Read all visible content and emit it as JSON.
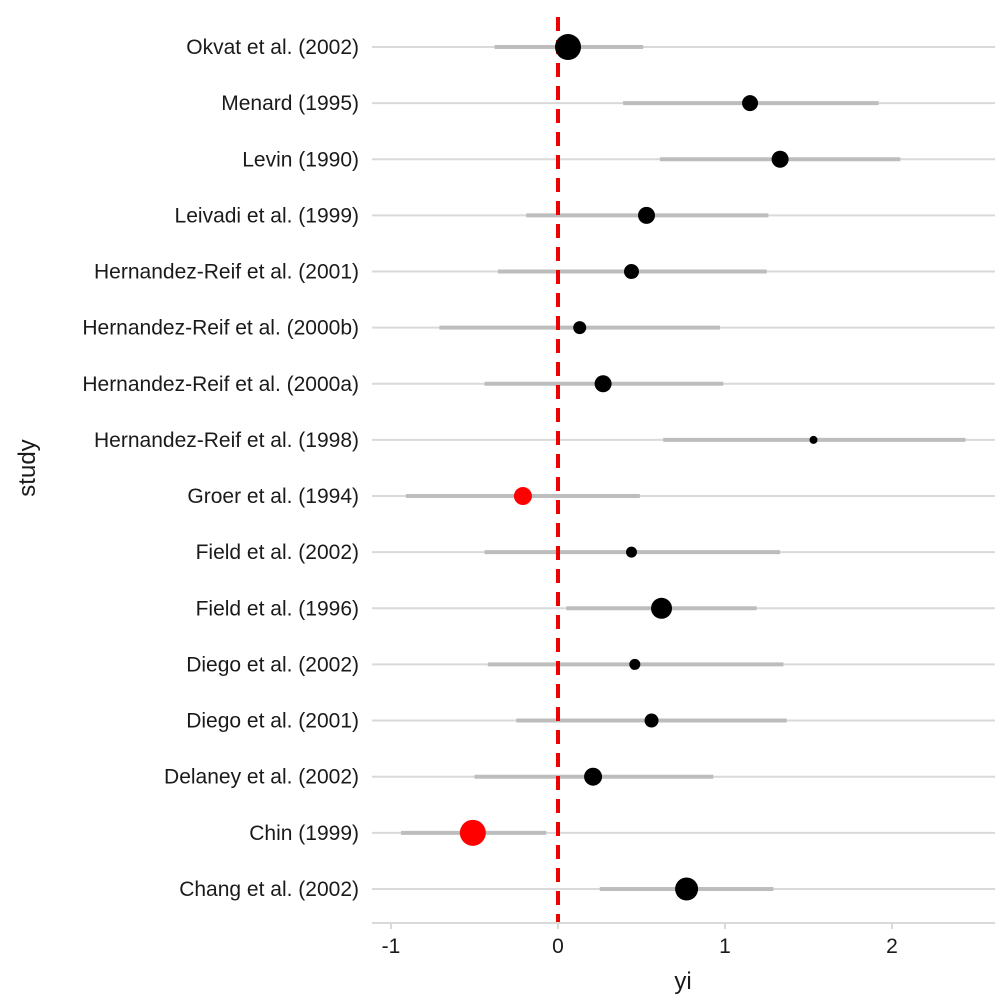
{
  "chart_data": {
    "type": "scatter",
    "subtype": "forest-plot",
    "title": "",
    "xlabel": "yi",
    "ylabel": "study",
    "xlim": [
      -1.1,
      2.6
    ],
    "xticks": [
      -1,
      0,
      1,
      2
    ],
    "xtick_labels": [
      "-1",
      "0",
      "1",
      "2"
    ],
    "reference_line": {
      "x": 0,
      "color": "#ee0000",
      "style": "dashed"
    },
    "grid": "horizontal",
    "legend": "none",
    "colors": {
      "positive": "#000000",
      "negative": "#ff0000",
      "interval": "#bdbdbd",
      "grid": "#d9d9d9"
    },
    "studies": [
      {
        "name": "Okvat et al. (2002)",
        "yi": 0.06,
        "ci_low": -0.38,
        "ci_high": 0.51,
        "weight": 13
      },
      {
        "name": "Menard (1995)",
        "yi": 1.15,
        "ci_low": 0.39,
        "ci_high": 1.92,
        "weight": 8
      },
      {
        "name": "Levin (1990)",
        "yi": 1.33,
        "ci_low": 0.61,
        "ci_high": 2.05,
        "weight": 8.5
      },
      {
        "name": "Leivadi et al. (1999)",
        "yi": 0.53,
        "ci_low": -0.19,
        "ci_high": 1.26,
        "weight": 8.5
      },
      {
        "name": "Hernandez-Reif et al. (2001)",
        "yi": 0.44,
        "ci_low": -0.36,
        "ci_high": 1.25,
        "weight": 7.5
      },
      {
        "name": "Hernandez-Reif et al. (2000b)",
        "yi": 0.13,
        "ci_low": -0.71,
        "ci_high": 0.97,
        "weight": 6.5
      },
      {
        "name": "Hernandez-Reif et al. (2000a)",
        "yi": 0.27,
        "ci_low": -0.44,
        "ci_high": 0.99,
        "weight": 8.5
      },
      {
        "name": "Hernandez-Reif et al. (1998)",
        "yi": 1.53,
        "ci_low": 0.63,
        "ci_high": 2.44,
        "weight": 4
      },
      {
        "name": "Groer et al. (1994)",
        "yi": -0.21,
        "ci_low": -0.91,
        "ci_high": 0.49,
        "weight": 9
      },
      {
        "name": "Field et al. (2002)",
        "yi": 0.44,
        "ci_low": -0.44,
        "ci_high": 1.33,
        "weight": 5.5
      },
      {
        "name": "Field et al. (1996)",
        "yi": 0.62,
        "ci_low": 0.05,
        "ci_high": 1.19,
        "weight": 10.5
      },
      {
        "name": "Diego et al. (2002)",
        "yi": 0.46,
        "ci_low": -0.42,
        "ci_high": 1.35,
        "weight": 5.5
      },
      {
        "name": "Diego et al. (2001)",
        "yi": 0.56,
        "ci_low": -0.25,
        "ci_high": 1.37,
        "weight": 7
      },
      {
        "name": "Delaney et al. (2002)",
        "yi": 0.21,
        "ci_low": -0.5,
        "ci_high": 0.93,
        "weight": 9
      },
      {
        "name": "Chin (1999)",
        "yi": -0.51,
        "ci_low": -0.94,
        "ci_high": -0.07,
        "weight": 13
      },
      {
        "name": "Chang et al. (2002)",
        "yi": 0.77,
        "ci_low": 0.25,
        "ci_high": 1.29,
        "weight": 11.5
      }
    ]
  }
}
